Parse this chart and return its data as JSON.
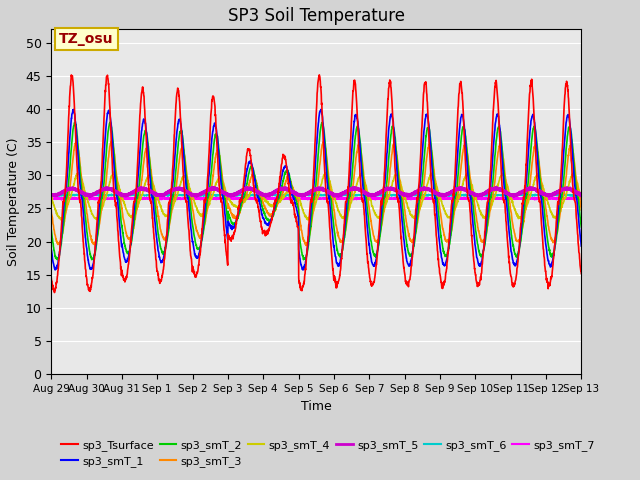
{
  "title": "SP3 Soil Temperature",
  "ylabel": "Soil Temperature (C)",
  "xlabel": "Time",
  "annotation_text": "TZ_osu",
  "annotation_bg": "#FFFFCC",
  "annotation_border": "#CCAA00",
  "annotation_text_color": "#990000",
  "plot_bg": "#E8E8E8",
  "fig_bg": "#D3D3D3",
  "ylim": [
    0,
    52
  ],
  "yticks": [
    0,
    5,
    10,
    15,
    20,
    25,
    30,
    35,
    40,
    45,
    50
  ],
  "series_colors": {
    "sp3_Tsurface": "#FF0000",
    "sp3_smT_1": "#0000FF",
    "sp3_smT_2": "#00CC00",
    "sp3_smT_3": "#FF8800",
    "sp3_smT_4": "#CCCC00",
    "sp3_smT_5": "#CC00CC",
    "sp3_smT_6": "#00CCCC",
    "sp3_smT_7": "#FF00FF"
  },
  "xtick_labels": [
    "Aug 29",
    "Aug 30",
    "Aug 31",
    "Sep 1",
    "Sep 2",
    "Sep 3",
    "Sep 4",
    "Sep 5",
    "Sep 6",
    "Sep 7",
    "Sep 8",
    "Sep 9",
    "Sep 10",
    "Sep 11",
    "Sep 12",
    "Sep 13"
  ],
  "xtick_positions": [
    0,
    1,
    2,
    3,
    4,
    5,
    6,
    7,
    8,
    9,
    10,
    11,
    12,
    13,
    14,
    15
  ]
}
